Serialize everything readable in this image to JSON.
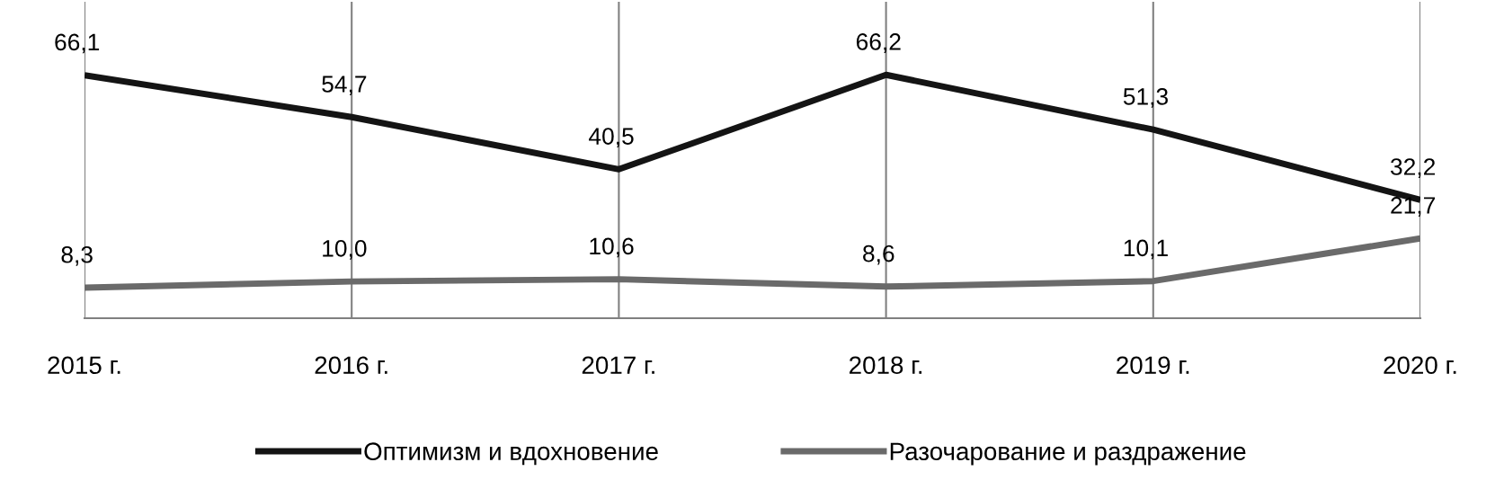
{
  "chart_data": {
    "type": "line",
    "categories": [
      "2015 г.",
      "2016 г.",
      "2017 г.",
      "2018 г.",
      "2019 г.",
      "2020 г."
    ],
    "series": [
      {
        "name": "Оптимизм и вдохновение",
        "color": "#141414",
        "values": [
          66.1,
          54.7,
          40.5,
          66.2,
          51.3,
          32.2
        ],
        "value_labels": [
          "66,1",
          "54,7",
          "40,5",
          "66,2",
          "51,3",
          "32,2"
        ]
      },
      {
        "name": "Разочарование и раздражение",
        "color": "#6a6a6a",
        "values": [
          8.3,
          10.0,
          10.6,
          8.6,
          10.1,
          21.7
        ],
        "value_labels": [
          "8,3",
          "10,0",
          "10,6",
          "8,6",
          "10,1",
          "21,7"
        ]
      }
    ],
    "relative": false,
    "grid": "x",
    "legend": "bottom",
    "marker": "none",
    "line_style": "solid"
  }
}
